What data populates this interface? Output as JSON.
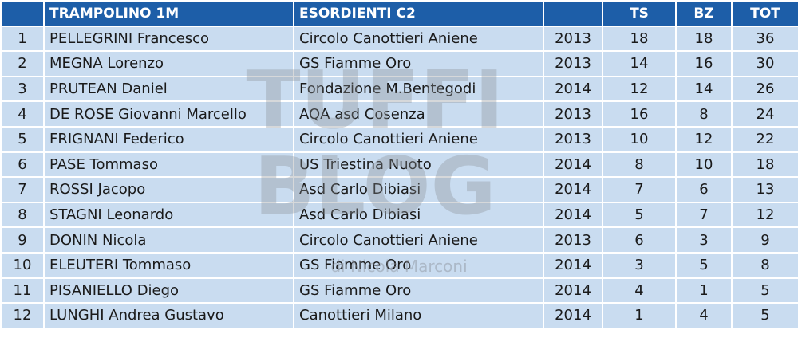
{
  "header": {
    "event": "TRAMPOLINO 1M",
    "category": "ESORDIENTI C2",
    "ts": "TS",
    "bz": "BZ",
    "tot": "TOT"
  },
  "rows": [
    [
      1,
      "PELLEGRINI Francesco",
      "Circolo Canottieri Aniene",
      2013,
      18,
      18,
      36
    ],
    [
      2,
      "MEGNA Lorenzo",
      "GS Fiamme Oro",
      2013,
      14,
      16,
      30
    ],
    [
      3,
      "PRUTEAN Daniel",
      "Fondazione M.Bentegodi",
      2014,
      12,
      14,
      26
    ],
    [
      4,
      "DE ROSE Giovanni Marcello",
      "AQA asd Cosenza",
      2013,
      16,
      8,
      24
    ],
    [
      5,
      "FRIGNANI Federico",
      "Circolo Canottieri Aniene",
      2013,
      10,
      12,
      22
    ],
    [
      6,
      "PASE Tommaso",
      "US Triestina Nuoto",
      2014,
      8,
      10,
      18
    ],
    [
      7,
      "ROSSI Jacopo",
      "Asd Carlo Dibiasi",
      2014,
      7,
      6,
      13
    ],
    [
      8,
      "STAGNI Leonardo",
      "Asd Carlo Dibiasi",
      2014,
      5,
      7,
      12
    ],
    [
      9,
      "DONIN Nicola",
      "Circolo Canottieri Aniene",
      2013,
      6,
      3,
      9
    ],
    [
      10,
      "ELEUTERI Tommaso",
      "GS Fiamme Oro",
      2014,
      3,
      5,
      8
    ],
    [
      11,
      "PISANIELLO Diego",
      "GS Fiamme Oro",
      2014,
      4,
      1,
      5
    ],
    [
      12,
      "LUNGHI Andrea Gustavo",
      "Canottieri Milano",
      2014,
      1,
      4,
      5
    ]
  ],
  "watermark": {
    "line1": "TUFFI",
    "line2": "BLOG",
    "credit": "di Nicola Marconi"
  }
}
